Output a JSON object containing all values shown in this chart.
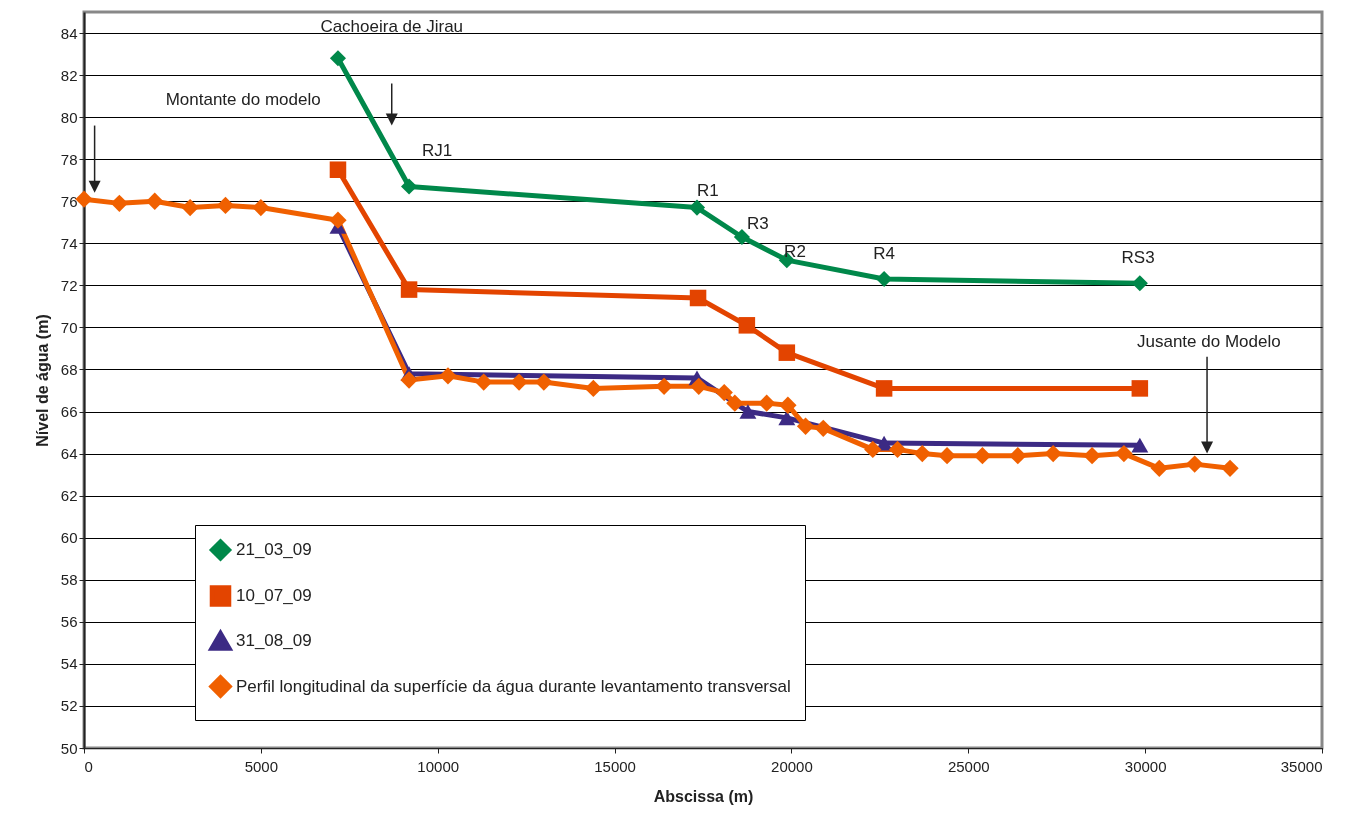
{
  "chart_data": {
    "type": "line",
    "xlabel": "Abscissa (m)",
    "ylabel": "Nível de água (m)",
    "xlim": [
      0,
      35000
    ],
    "xticks": [
      0,
      5000,
      10000,
      15000,
      20000,
      25000,
      30000,
      35000
    ],
    "ylim": [
      50,
      85
    ],
    "yticks": [
      50,
      52,
      54,
      56,
      58,
      60,
      62,
      64,
      66,
      68,
      70,
      72,
      74,
      76,
      78,
      80,
      82,
      84
    ],
    "grid": "y",
    "legend": "bottom left",
    "line_style": "solid",
    "series": [
      {
        "name": "21_03_09",
        "color": "#00884a",
        "marker": "diamond",
        "x": [
          7180,
          9190,
          17330,
          18600,
          19870,
          22620,
          29850
        ],
        "values": [
          82.8,
          76.7,
          75.7,
          74.3,
          73.2,
          72.3,
          72.1
        ]
      },
      {
        "name": "10_07_09",
        "color": "#e34400",
        "marker": "square",
        "x": [
          7180,
          9190,
          17360,
          18740,
          19870,
          22620,
          29850
        ],
        "values": [
          77.5,
          71.8,
          71.4,
          70.1,
          68.8,
          67.1,
          67.1
        ]
      },
      {
        "name": "31_08_09",
        "color": "#3c2a84",
        "marker": "triangle",
        "x": [
          7180,
          9190,
          17330,
          18770,
          19870,
          22620,
          29850
        ],
        "values": [
          74.8,
          67.8,
          67.6,
          66.0,
          65.7,
          64.5,
          64.4
        ]
      },
      {
        "name": "Perfil longitudinal da superfície da água durante levantamento transversal",
        "color": "#f06000",
        "marker": "diamond",
        "x": [
          0,
          1000,
          2000,
          3000,
          4000,
          5000,
          7180,
          9190,
          10290,
          11300,
          12300,
          13000,
          14400,
          16400,
          17380,
          18100,
          18400,
          19300,
          19900,
          20400,
          20900,
          22300,
          23000,
          23700,
          24400,
          25400,
          26400,
          27400,
          28500,
          29400,
          30400,
          31400,
          32400
        ],
        "values": [
          76.1,
          75.9,
          76.0,
          75.7,
          75.8,
          75.7,
          75.1,
          67.5,
          67.7,
          67.4,
          67.4,
          67.4,
          67.1,
          67.2,
          67.2,
          66.9,
          66.4,
          66.4,
          66.3,
          65.3,
          65.2,
          64.2,
          64.2,
          64.0,
          63.9,
          63.9,
          63.9,
          64.0,
          63.9,
          64.0,
          63.3,
          63.5,
          63.3
        ]
      }
    ],
    "annotations": [
      "Cachoeira de Jirau",
      "Montante do modelo",
      "RJ1",
      "R1",
      "R3",
      "R2",
      "R4",
      "RS3",
      "Jusante do Modelo"
    ]
  }
}
